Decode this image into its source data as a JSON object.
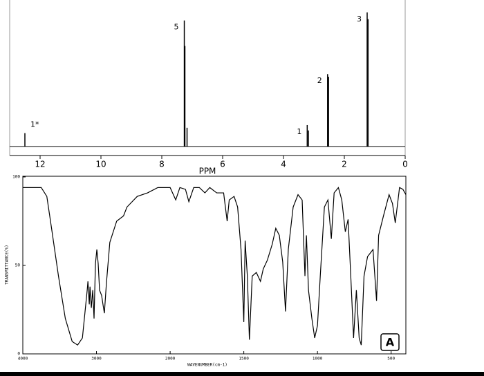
{
  "chart_data": [
    {
      "type": "spectrum",
      "xlabel": "PPM",
      "xlim": [
        13,
        0
      ],
      "xticks": [
        12,
        10,
        8,
        6,
        4,
        2,
        0
      ],
      "ylim": [
        0,
        100
      ],
      "color": "#000000",
      "peaks": [
        {
          "label": "1*",
          "x": 12.5,
          "height": 10
        },
        {
          "label": "5",
          "x": 7.26,
          "height": 94
        },
        {
          "label": null,
          "x": 7.24,
          "height": 75
        },
        {
          "label": null,
          "x": 7.17,
          "height": 14
        },
        {
          "label": "1",
          "x": 3.22,
          "height": 16
        },
        {
          "label": null,
          "x": 3.18,
          "height": 12
        },
        {
          "label": "2",
          "x": 2.55,
          "height": 54
        },
        {
          "label": null,
          "x": 2.52,
          "height": 52
        },
        {
          "label": "3",
          "x": 1.25,
          "height": 100
        },
        {
          "label": null,
          "x": 1.22,
          "height": 95
        }
      ]
    },
    {
      "type": "line",
      "xlabel": "WAVENUMBER(cm-1)",
      "ylabel": "TRANSMITTANCE(%)",
      "annotation": "A",
      "color": "#000000",
      "xlim": [
        4000,
        400
      ],
      "x_scale_halved_above": 2000,
      "xticks": [
        4000,
        3000,
        2000,
        1500,
        1000,
        500
      ],
      "ylim": [
        0,
        100
      ],
      "yticks": [
        0,
        50,
        100
      ],
      "x": [
        4000,
        3750,
        3674,
        3610,
        3516,
        3423,
        3330,
        3256,
        3191,
        3126,
        3116,
        3098,
        3088,
        3070,
        3051,
        3033,
        3014,
        2995,
        2977,
        2958,
        2930,
        2912,
        2893,
        2865,
        2819,
        2726,
        2633,
        2586,
        2447,
        2307,
        2167,
        2000,
        1962,
        1934,
        1896,
        1873,
        1840,
        1802,
        1764,
        1731,
        1684,
        1637,
        1613,
        1599,
        1566,
        1542,
        1519,
        1500,
        1491,
        1476,
        1462,
        1443,
        1415,
        1387,
        1368,
        1340,
        1307,
        1283,
        1259,
        1236,
        1217,
        1198,
        1165,
        1132,
        1104,
        1085,
        1075,
        1061,
        1038,
        1019,
        1000,
        981,
        953,
        929,
        906,
        887,
        858,
        835,
        811,
        792,
        774,
        755,
        736,
        717,
        703,
        684,
        660,
        623,
        599,
        585,
        552,
        514,
        491,
        472,
        443,
        420,
        400
      ],
      "values": [
        94,
        94,
        89,
        71,
        44,
        20,
        7,
        5,
        9,
        36,
        41,
        28,
        38,
        26,
        36,
        20,
        51,
        59,
        51,
        36,
        33,
        28,
        23,
        40,
        63,
        75,
        78,
        83,
        89,
        91,
        94,
        94,
        87,
        94,
        93,
        86,
        94,
        94,
        91,
        94,
        91,
        91,
        75,
        87,
        89,
        83,
        59,
        18,
        64,
        44,
        8,
        44,
        46,
        41,
        48,
        53,
        62,
        71,
        67,
        52,
        24,
        59,
        83,
        90,
        87,
        44,
        67,
        36,
        20,
        9,
        16,
        44,
        83,
        87,
        65,
        91,
        94,
        87,
        69,
        76,
        44,
        9,
        36,
        9,
        5,
        44,
        55,
        59,
        30,
        67,
        78,
        90,
        85,
        74,
        94,
        93,
        90
      ]
    }
  ]
}
